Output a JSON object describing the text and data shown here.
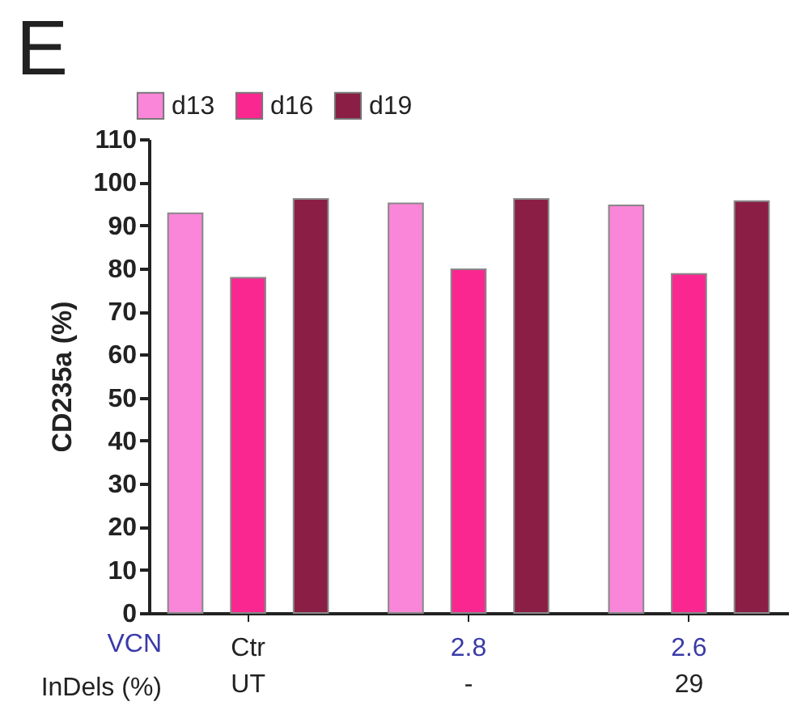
{
  "chart_data": {
    "type": "bar",
    "title": "E",
    "ylabel": "CD235a (%)",
    "categories": [
      "Ctr",
      "2.8",
      "2.6"
    ],
    "series": [
      {
        "name": "d13",
        "color": "#f986d8",
        "values": [
          92.8,
          95.1,
          94.6
        ]
      },
      {
        "name": "d16",
        "color": "#fb2790",
        "values": [
          77.8,
          79.8,
          78.7
        ]
      },
      {
        "name": "d19",
        "color": "#8b1e45",
        "values": [
          96.1,
          96.1,
          95.6
        ]
      }
    ],
    "ylim": [
      0,
      110
    ],
    "yticks": [
      0,
      10,
      20,
      30,
      40,
      50,
      60,
      70,
      80,
      90,
      100,
      110
    ],
    "annotations": [
      "VCN",
      "InDels (%)",
      "UT",
      "-",
      "29"
    ],
    "legend": "top left",
    "grid": false
  }
}
